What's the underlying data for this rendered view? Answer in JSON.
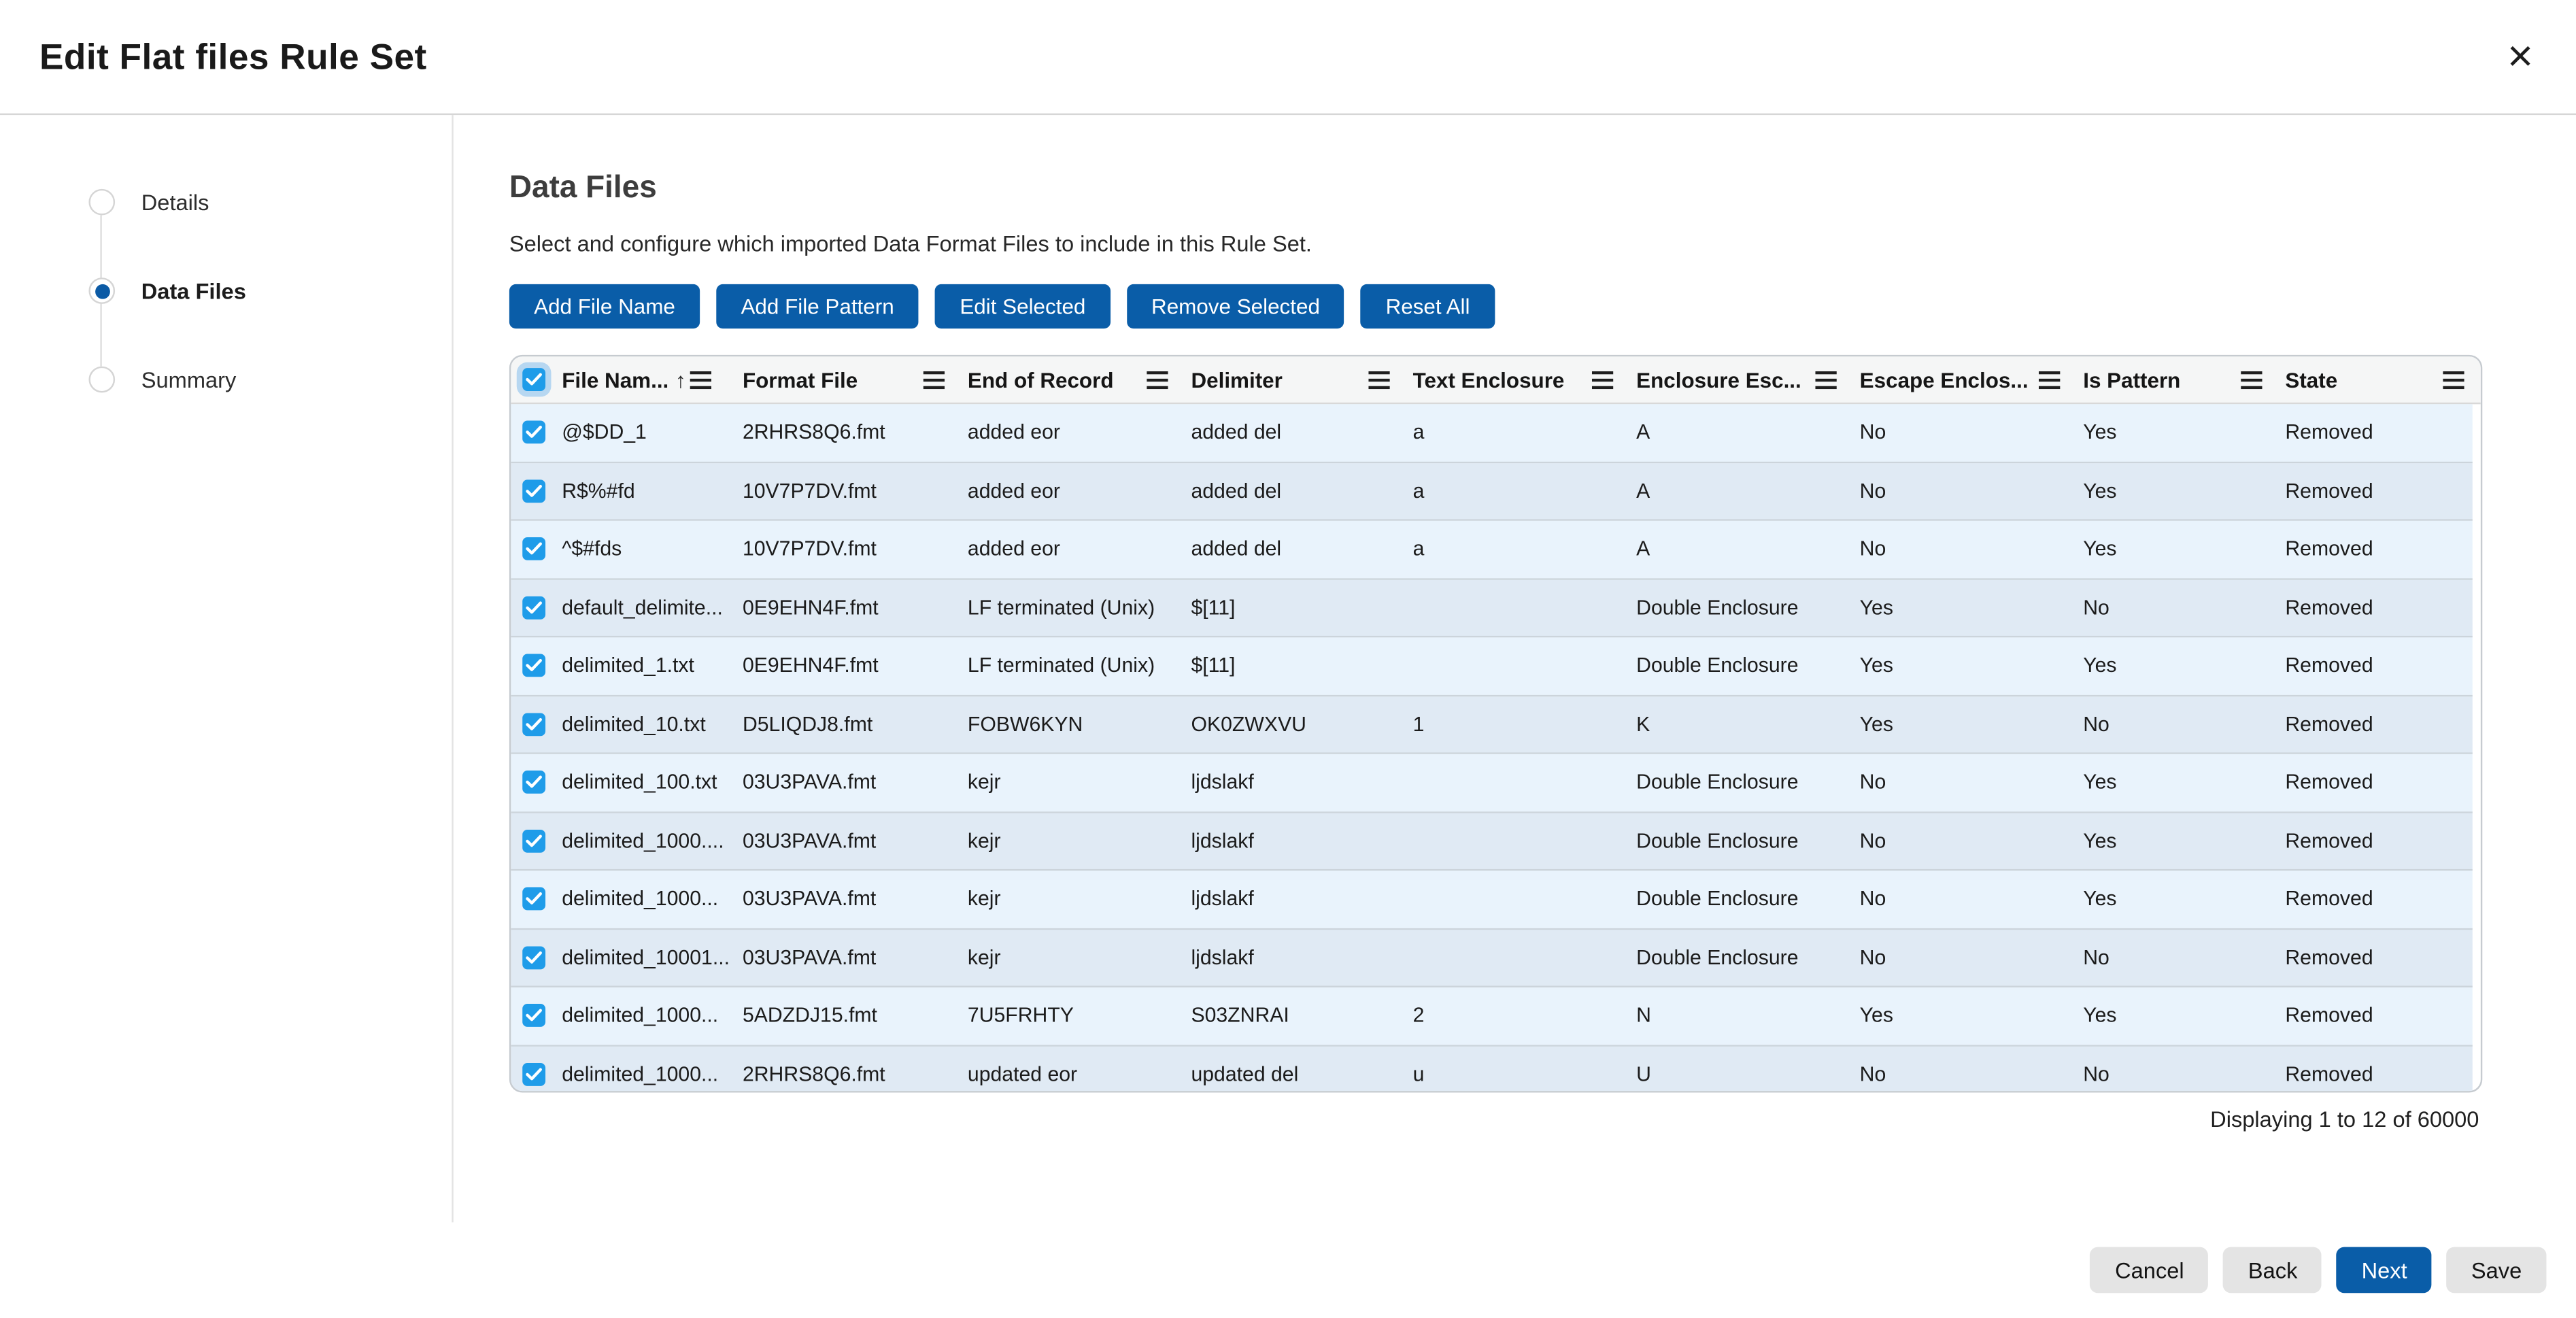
{
  "modal": {
    "title": "Edit Flat files Rule Set"
  },
  "icons": {
    "close": "×",
    "sort_ascending": "↑"
  },
  "wizard": {
    "steps": [
      {
        "label": "Details",
        "state": "incomplete"
      },
      {
        "label": "Data Files",
        "state": "active"
      },
      {
        "label": "Summary",
        "state": "incomplete"
      }
    ]
  },
  "section": {
    "heading": "Data Files",
    "description": "Select and configure which imported Data Format Files to include in this Rule Set."
  },
  "toolbar": {
    "buttons": [
      "Add File Name",
      "Add File Pattern",
      "Edit Selected",
      "Remove Selected",
      "Reset All"
    ]
  },
  "table": {
    "columns": [
      "File Nam...",
      "Format File",
      "End of Record",
      "Delimiter",
      "Text Enclosure",
      "Enclosure Esc...",
      "Escape Enclos...",
      "Is Pattern",
      "State"
    ],
    "sort_column": "File Nam...",
    "sort_direction": "ascending",
    "select_all_checked": true,
    "rows": [
      {
        "checked": true,
        "file_name": "@$DD_1",
        "format_file": "2RHRS8Q6.fmt",
        "end_of_record": "added eor",
        "delimiter": "added del",
        "text_enclosure": "a",
        "enclosure_escape": "A",
        "escape_enclosure": "No",
        "is_pattern": "Yes",
        "state": "Removed"
      },
      {
        "checked": true,
        "file_name": "R$%#fd",
        "format_file": "10V7P7DV.fmt",
        "end_of_record": "added eor",
        "delimiter": "added del",
        "text_enclosure": "a",
        "enclosure_escape": "A",
        "escape_enclosure": "No",
        "is_pattern": "Yes",
        "state": "Removed"
      },
      {
        "checked": true,
        "file_name": "^$#fds",
        "format_file": "10V7P7DV.fmt",
        "end_of_record": "added eor",
        "delimiter": "added del",
        "text_enclosure": "a",
        "enclosure_escape": "A",
        "escape_enclosure": "No",
        "is_pattern": "Yes",
        "state": "Removed"
      },
      {
        "checked": true,
        "file_name": "default_delimite...",
        "format_file": "0E9EHN4F.fmt",
        "end_of_record": "LF terminated (Unix)",
        "delimiter": "$[11]",
        "text_enclosure": "",
        "enclosure_escape": "Double Enclosure",
        "escape_enclosure": "Yes",
        "is_pattern": "No",
        "state": "Removed"
      },
      {
        "checked": true,
        "file_name": "delimited_1.txt",
        "format_file": "0E9EHN4F.fmt",
        "end_of_record": "LF terminated (Unix)",
        "delimiter": "$[11]",
        "text_enclosure": "",
        "enclosure_escape": "Double Enclosure",
        "escape_enclosure": "Yes",
        "is_pattern": "Yes",
        "state": "Removed"
      },
      {
        "checked": true,
        "file_name": "delimited_10.txt",
        "format_file": "D5LIQDJ8.fmt",
        "end_of_record": "FOBW6KYN",
        "delimiter": "OK0ZWXVU",
        "text_enclosure": "1",
        "enclosure_escape": "K",
        "escape_enclosure": "Yes",
        "is_pattern": "No",
        "state": "Removed"
      },
      {
        "checked": true,
        "file_name": "delimited_100.txt",
        "format_file": "03U3PAVA.fmt",
        "end_of_record": "kejr",
        "delimiter": "ljdslakf",
        "text_enclosure": "",
        "enclosure_escape": "Double Enclosure",
        "escape_enclosure": "No",
        "is_pattern": "Yes",
        "state": "Removed"
      },
      {
        "checked": true,
        "file_name": "delimited_1000....",
        "format_file": "03U3PAVA.fmt",
        "end_of_record": "kejr",
        "delimiter": "ljdslakf",
        "text_enclosure": "",
        "enclosure_escape": "Double Enclosure",
        "escape_enclosure": "No",
        "is_pattern": "Yes",
        "state": "Removed"
      },
      {
        "checked": true,
        "file_name": "delimited_1000...",
        "format_file": "03U3PAVA.fmt",
        "end_of_record": "kejr",
        "delimiter": "ljdslakf",
        "text_enclosure": "",
        "enclosure_escape": "Double Enclosure",
        "escape_enclosure": "No",
        "is_pattern": "Yes",
        "state": "Removed"
      },
      {
        "checked": true,
        "file_name": "delimited_10001...",
        "format_file": "03U3PAVA.fmt",
        "end_of_record": "kejr",
        "delimiter": "ljdslakf",
        "text_enclosure": "",
        "enclosure_escape": "Double Enclosure",
        "escape_enclosure": "No",
        "is_pattern": "No",
        "state": "Removed"
      },
      {
        "checked": true,
        "file_name": "delimited_1000...",
        "format_file": "5ADZDJ15.fmt",
        "end_of_record": "7U5FRHTY",
        "delimiter": "S03ZNRAI",
        "text_enclosure": "2",
        "enclosure_escape": "N",
        "escape_enclosure": "Yes",
        "is_pattern": "Yes",
        "state": "Removed"
      },
      {
        "checked": true,
        "file_name": "delimited_1000...",
        "format_file": "2RHRS8Q6.fmt",
        "end_of_record": "updated eor",
        "delimiter": "updated del",
        "text_enclosure": "u",
        "enclosure_escape": "U",
        "escape_enclosure": "No",
        "is_pattern": "No",
        "state": "Removed"
      }
    ]
  },
  "pagination": {
    "status": "Displaying 1 to 12 of 60000"
  },
  "footer": {
    "buttons": [
      {
        "label": "Cancel",
        "variant": "secondary"
      },
      {
        "label": "Back",
        "variant": "secondary"
      },
      {
        "label": "Next",
        "variant": "primary"
      },
      {
        "label": "Save",
        "variant": "secondary"
      }
    ]
  },
  "colors": {
    "accent_blue": "#0a5da8",
    "wizard_active_dot": "#0b5aa5",
    "checkbox_blue": "#1f9ce9",
    "table_header_bg": "#f5f6f6",
    "row_odd_bg": "#e9f3fc",
    "row_even_bg": "#e0eaf4",
    "table_border": "#c6cbd0"
  }
}
